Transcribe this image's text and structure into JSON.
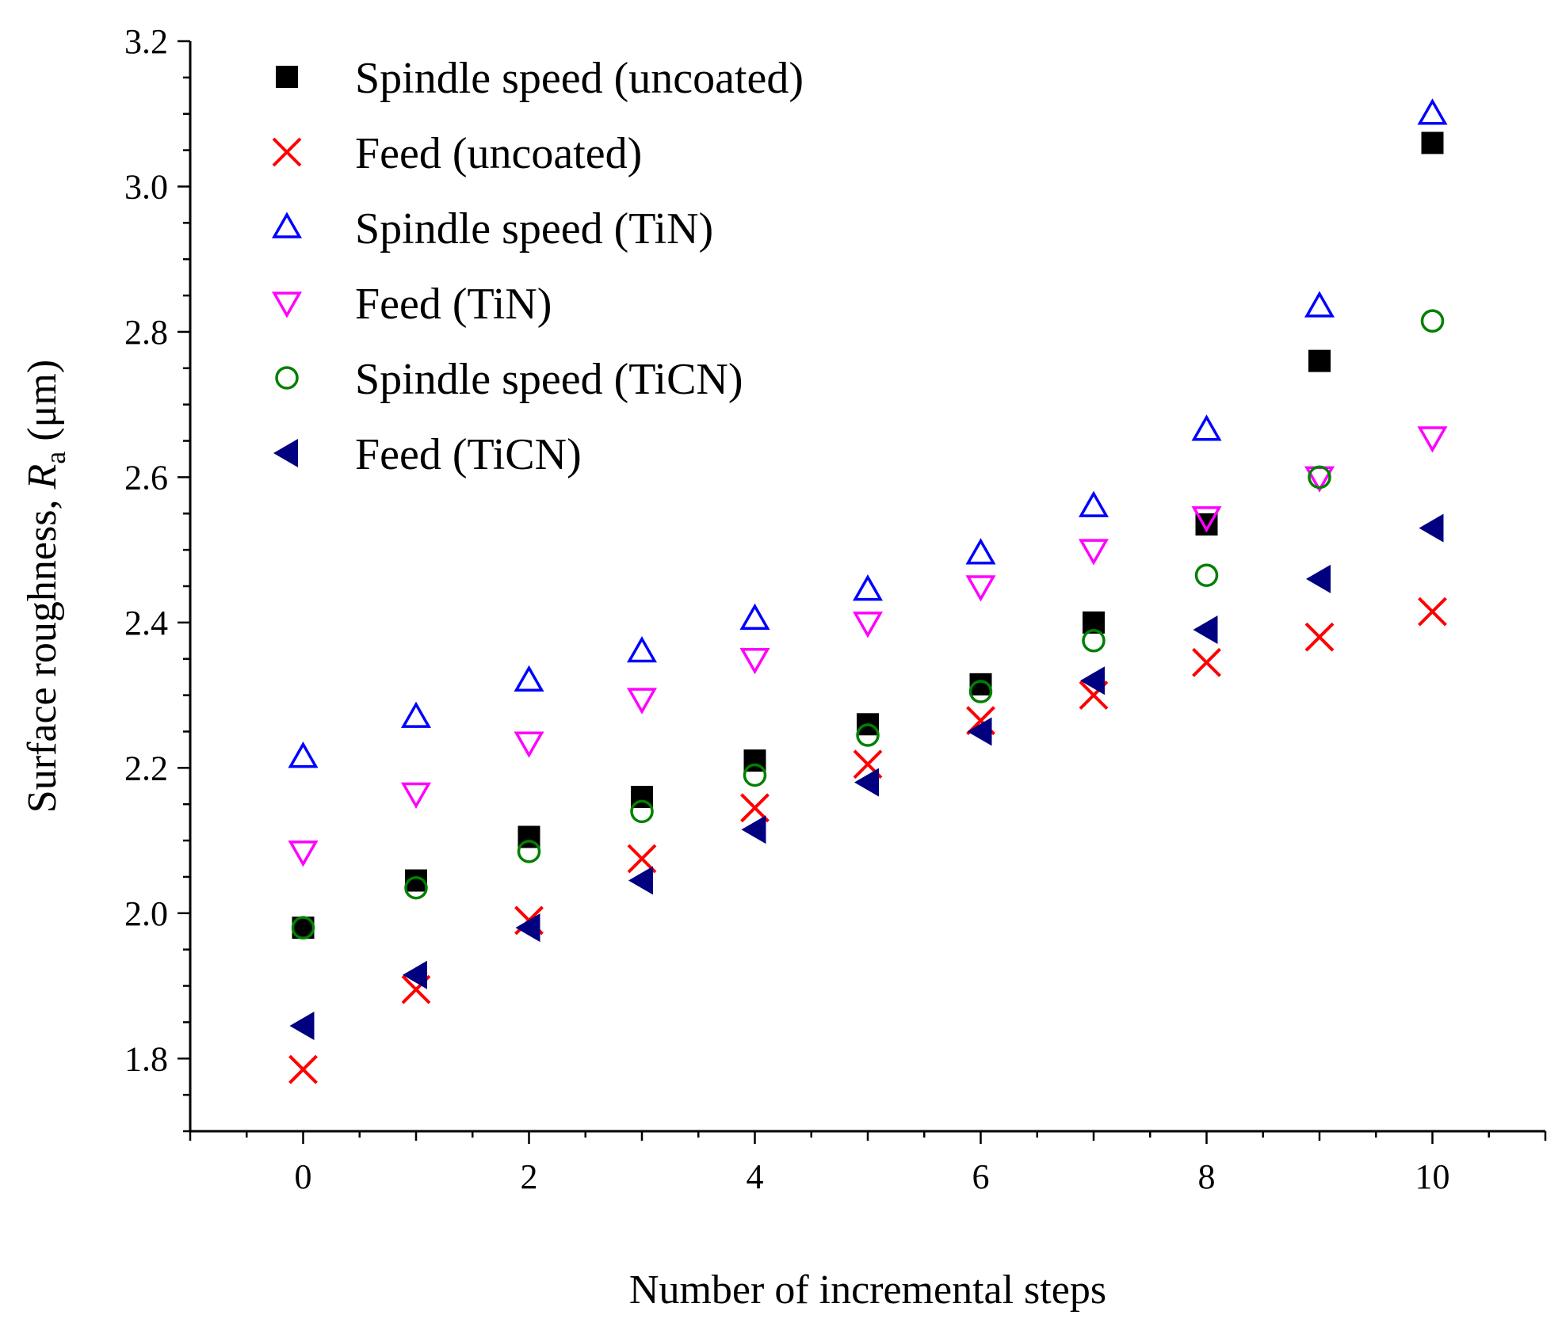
{
  "chart_data": {
    "type": "scatter",
    "title": "",
    "xlabel": "Number of incremental steps",
    "ylabel_main": "Surface roughness, ",
    "ylabel_var": "R",
    "ylabel_sub": "a",
    "ylabel_unit": " (μm)",
    "xlim": [
      -1,
      11
    ],
    "ylim": [
      1.7,
      3.2
    ],
    "x_ticks": [
      0,
      2,
      4,
      6,
      8,
      10
    ],
    "y_ticks": [
      1.8,
      2.0,
      2.2,
      2.4,
      2.6,
      2.8,
      3.0,
      3.2
    ],
    "grid": false,
    "legend_position": "top-left",
    "x": [
      0,
      1,
      2,
      3,
      4,
      5,
      6,
      7,
      8,
      9,
      10
    ],
    "series": [
      {
        "name": "Spindle speed (uncoated)",
        "marker": "square-filled",
        "color": "#000000",
        "values": [
          1.98,
          2.045,
          2.105,
          2.16,
          2.21,
          2.26,
          2.315,
          2.4,
          2.535,
          2.76,
          3.06
        ]
      },
      {
        "name": "Feed (uncoated)",
        "marker": "x",
        "color": "#ff0000",
        "values": [
          1.785,
          1.895,
          1.99,
          2.075,
          2.145,
          2.205,
          2.265,
          2.3,
          2.345,
          2.38,
          2.415
        ]
      },
      {
        "name": "Spindle speed (TiN)",
        "marker": "triangle-up-open",
        "color": "#0000ff",
        "values": [
          2.215,
          2.27,
          2.32,
          2.36,
          2.405,
          2.445,
          2.495,
          2.56,
          2.665,
          2.835,
          3.1
        ]
      },
      {
        "name": "Feed (TiN)",
        "marker": "triangle-down-open",
        "color": "#ff00ff",
        "values": [
          2.085,
          2.165,
          2.235,
          2.295,
          2.35,
          2.4,
          2.45,
          2.5,
          2.545,
          2.6,
          2.655
        ]
      },
      {
        "name": "Spindle speed (TiCN)",
        "marker": "circle-open",
        "color": "#008000",
        "values": [
          1.98,
          2.035,
          2.085,
          2.14,
          2.19,
          2.245,
          2.305,
          2.375,
          2.465,
          2.6,
          2.815
        ]
      },
      {
        "name": "Feed (TiCN)",
        "marker": "triangle-left-filled",
        "color": "#000080",
        "values": [
          1.845,
          1.915,
          1.98,
          2.045,
          2.115,
          2.18,
          2.25,
          2.32,
          2.39,
          2.46,
          2.53
        ]
      }
    ]
  }
}
